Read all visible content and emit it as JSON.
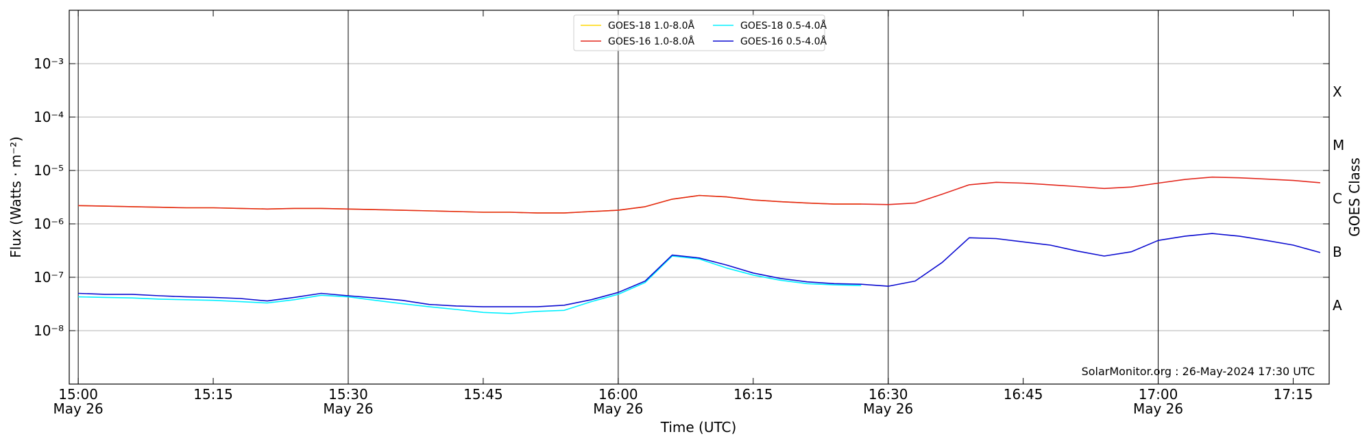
{
  "chart_data": {
    "type": "line",
    "xlabel": "Time (UTC)",
    "ylabel": "Flux (Watts · m⁻²)",
    "y2label": "GOES Class",
    "annotation": "SolarMonitor.org : 26-May-2024 17:30 UTC",
    "log_y": true,
    "grid": true,
    "legend": "upper center",
    "x": [
      "15:00",
      "15:03",
      "15:06",
      "15:09",
      "15:12",
      "15:15",
      "15:18",
      "15:21",
      "15:24",
      "15:27",
      "15:30",
      "15:33",
      "15:36",
      "15:39",
      "15:42",
      "15:45",
      "15:48",
      "15:51",
      "15:54",
      "15:57",
      "16:00",
      "16:03",
      "16:06",
      "16:09",
      "16:12",
      "16:15",
      "16:18",
      "16:21",
      "16:24",
      "16:27",
      "16:30",
      "16:33",
      "16:36",
      "16:39",
      "16:42",
      "16:45",
      "16:48",
      "16:51",
      "16:54",
      "16:57",
      "17:00",
      "17:03",
      "17:06",
      "17:09",
      "17:12",
      "17:15",
      "17:18"
    ],
    "xlim": [
      "14:59",
      "17:19"
    ],
    "xticks": [
      "15:00",
      "15:15",
      "15:30",
      "15:45",
      "16:00",
      "16:15",
      "16:30",
      "16:45",
      "17:00",
      "17:15"
    ],
    "xtick_dates": [
      "May 26",
      null,
      "May 26",
      null,
      "May 26",
      null,
      "May 26",
      null,
      "May 26",
      null
    ],
    "ylim": [
      1e-09,
      0.01
    ],
    "yticks": [
      {
        "value": 1e-08,
        "label": "10⁻⁸"
      },
      {
        "value": 1e-07,
        "label": "10⁻⁷"
      },
      {
        "value": 1e-06,
        "label": "10⁻⁶"
      },
      {
        "value": 1e-05,
        "label": "10⁻⁵"
      },
      {
        "value": 0.0001,
        "label": "10⁻⁴"
      },
      {
        "value": 0.001,
        "label": "10⁻³"
      }
    ],
    "y2lim": [
      1e-09,
      0.01
    ],
    "y2ticks": [
      {
        "value": 3e-08,
        "label": "A"
      },
      {
        "value": 3e-07,
        "label": "B"
      },
      {
        "value": 3e-06,
        "label": "C"
      },
      {
        "value": 3e-05,
        "label": "M"
      },
      {
        "value": 0.0003,
        "label": "X"
      }
    ],
    "series": [
      {
        "name": "GOES-18 1.0-8.0Å",
        "color": "#ffd700",
        "values": [
          2.2e-06,
          2.15e-06,
          2.1e-06,
          2.05e-06,
          2e-06,
          2e-06,
          1.95e-06,
          1.9e-06,
          1.95e-06,
          1.95e-06,
          1.9e-06,
          1.85e-06,
          1.8e-06,
          1.75e-06,
          1.7e-06,
          1.65e-06,
          1.65e-06,
          1.6e-06,
          1.6e-06,
          1.7e-06,
          1.8e-06,
          2.1e-06,
          2.9e-06,
          3.4e-06,
          3.2e-06,
          2.8e-06,
          2.6e-06,
          2.45e-06,
          2.35e-06,
          2.35e-06,
          null,
          null,
          null,
          null,
          null,
          null,
          null,
          null,
          null,
          null,
          null,
          null,
          null,
          null,
          null,
          null,
          null
        ]
      },
      {
        "name": "GOES-16 1.0-8.0Å",
        "color": "#e3261b",
        "values": [
          2.2e-06,
          2.15e-06,
          2.1e-06,
          2.05e-06,
          2e-06,
          2e-06,
          1.95e-06,
          1.9e-06,
          1.95e-06,
          1.95e-06,
          1.9e-06,
          1.85e-06,
          1.8e-06,
          1.75e-06,
          1.7e-06,
          1.65e-06,
          1.65e-06,
          1.6e-06,
          1.6e-06,
          1.7e-06,
          1.8e-06,
          2.1e-06,
          2.9e-06,
          3.4e-06,
          3.2e-06,
          2.8e-06,
          2.6e-06,
          2.45e-06,
          2.35e-06,
          2.35e-06,
          2.3e-06,
          2.45e-06,
          3.6e-06,
          5.4e-06,
          6e-06,
          5.8e-06,
          5.4e-06,
          5e-06,
          4.6e-06,
          4.9e-06,
          5.8e-06,
          6.8e-06,
          7.5e-06,
          7.3e-06,
          6.9e-06,
          6.5e-06,
          5.9e-06
        ]
      },
      {
        "name": "GOES-18 0.5-4.0Å",
        "color": "#00f0ff",
        "values": [
          4.3e-08,
          4.2e-08,
          4.1e-08,
          3.9e-08,
          3.8e-08,
          3.7e-08,
          3.5e-08,
          3.3e-08,
          3.8e-08,
          4.6e-08,
          4.3e-08,
          3.7e-08,
          3.2e-08,
          2.8e-08,
          2.5e-08,
          2.2e-08,
          2.1e-08,
          2.3e-08,
          2.4e-08,
          3.5e-08,
          4.8e-08,
          8e-08,
          2.5e-07,
          2.2e-07,
          1.5e-07,
          1.1e-07,
          8.8e-08,
          7.6e-08,
          7.2e-08,
          7e-08,
          null,
          null,
          null,
          null,
          null,
          null,
          null,
          null,
          null,
          null,
          null,
          null,
          null,
          null,
          null,
          null,
          null
        ]
      },
      {
        "name": "GOES-16 0.5-4.0Å",
        "color": "#0a0ad0",
        "values": [
          5e-08,
          4.8e-08,
          4.8e-08,
          4.5e-08,
          4.3e-08,
          4.2e-08,
          4e-08,
          3.6e-08,
          4.2e-08,
          5e-08,
          4.5e-08,
          4.1e-08,
          3.7e-08,
          3.1e-08,
          2.9e-08,
          2.8e-08,
          2.8e-08,
          2.8e-08,
          3e-08,
          3.8e-08,
          5.2e-08,
          8.5e-08,
          2.6e-07,
          2.3e-07,
          1.7e-07,
          1.2e-07,
          9.5e-08,
          8.2e-08,
          7.6e-08,
          7.4e-08,
          6.8e-08,
          8.5e-08,
          1.9e-07,
          5.5e-07,
          5.3e-07,
          4.6e-07,
          4e-07,
          3.1e-07,
          2.5e-07,
          3e-07,
          4.9e-07,
          5.9e-07,
          6.6e-07,
          5.9e-07,
          4.9e-07,
          4e-07,
          2.9e-07
        ]
      }
    ]
  }
}
